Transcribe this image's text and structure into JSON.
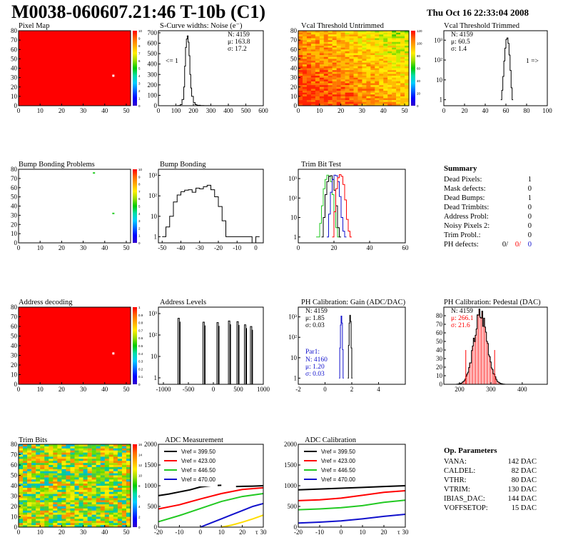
{
  "header": {
    "title": "M0038-060607.21:46 T-10b (C1)",
    "date": "Thu Oct 16 22:33:04 2008"
  },
  "colors": {
    "black": "#000000",
    "red": "#ff0000",
    "green": "#22c922",
    "blue": "#1111cc",
    "yellow": "#ffdd00"
  },
  "chart_data": [
    {
      "id": "pixel-map",
      "type": "heatmap",
      "title": "Pixel Map",
      "xlim": [
        0,
        52
      ],
      "ylim": [
        0,
        80
      ],
      "xticks": [
        0,
        10,
        20,
        30,
        40,
        50
      ],
      "yticks": [
        0,
        10,
        20,
        30,
        40,
        50,
        60,
        70,
        80
      ],
      "zscale_ticks": [
        "0",
        "1",
        "2",
        "3",
        "4",
        "5",
        "6",
        "7",
        "8",
        "9",
        "10"
      ],
      "fill": "uniform red (10)",
      "dead_pixel": {
        "x": 44,
        "y": 32
      }
    },
    {
      "id": "scurve",
      "type": "histogram",
      "title": "S-Curve widths: Noise (e⁻)",
      "xticks": [
        "0",
        "100",
        "200",
        "300",
        "400",
        "500",
        "600"
      ],
      "yticks": [
        "0",
        "100",
        "200",
        "300",
        "400",
        "500",
        "600",
        "700"
      ],
      "xlim": [
        0,
        600
      ],
      "ylim": [
        0,
        720
      ],
      "stats": [
        "N: 4159",
        "μ: 163.8",
        "σ: 17.2"
      ],
      "annotation": "<= 1",
      "x": [
        90,
        110,
        125,
        135,
        145,
        150,
        155,
        160,
        165,
        170,
        175,
        180,
        185,
        190,
        200,
        210,
        220,
        240,
        260,
        300
      ],
      "y": [
        0,
        2,
        10,
        60,
        180,
        380,
        560,
        640,
        670,
        610,
        480,
        300,
        170,
        90,
        30,
        10,
        4,
        2,
        1,
        0
      ]
    },
    {
      "id": "vcal-untrimmed",
      "type": "heatmap",
      "title": "Vcal Threshold Untrimmed",
      "xlim": [
        0,
        52
      ],
      "ylim": [
        0,
        80
      ],
      "xticks": [
        0,
        10,
        20,
        30,
        40,
        50
      ],
      "yticks": [
        0,
        10,
        20,
        30,
        40,
        50,
        60,
        70,
        80
      ],
      "zscale_ticks": [
        "0",
        "20",
        "40",
        "60",
        "80",
        "100",
        "120"
      ],
      "fill": "gradient: high (orange) upper-left to lower (yellow/green) lower-right"
    },
    {
      "id": "vcal-trimmed",
      "type": "histogram",
      "title": "Vcal Threshold Trimmed",
      "yscale": "log",
      "xticks": [
        "0",
        "20",
        "40",
        "60",
        "80",
        "100"
      ],
      "yticks": [
        "1",
        "10",
        "10²",
        "10³"
      ],
      "xlim": [
        0,
        100
      ],
      "ylim": [
        0.5,
        3000
      ],
      "stats": [
        "N: 4159",
        "μ: 60.5",
        "σ: 1.4"
      ],
      "annotation": "1 =>",
      "x": [
        55,
        56,
        57,
        58,
        59,
        60,
        61,
        62,
        63,
        64,
        65,
        66
      ],
      "y": [
        1,
        3,
        15,
        90,
        400,
        1100,
        1300,
        700,
        180,
        30,
        4,
        1
      ]
    },
    {
      "id": "bump-problems",
      "type": "heatmap",
      "title": "Bump Bonding Problems",
      "xlim": [
        0,
        52
      ],
      "ylim": [
        0,
        80
      ],
      "xticks": [
        0,
        10,
        20,
        30,
        40,
        50
      ],
      "yticks": [
        0,
        10,
        20,
        30,
        40,
        50,
        60,
        70,
        80
      ],
      "zscale_ticks": [
        "0",
        "1",
        "2",
        "3",
        "4",
        "5",
        "6",
        "7",
        "8",
        "9",
        "10"
      ],
      "fill": "white",
      "marks": [
        {
          "x": 35,
          "y": 76
        },
        {
          "x": 44,
          "y": 32
        }
      ]
    },
    {
      "id": "bump-bonding",
      "type": "histogram",
      "title": "Bump Bonding",
      "yscale": "log",
      "xticks": [
        "-50",
        "-40",
        "-30",
        "-20",
        "-10",
        "0"
      ],
      "yticks": [
        "1",
        "10",
        "10²",
        "10³"
      ],
      "xlim": [
        -52,
        4
      ],
      "ylim": [
        0.5,
        2000
      ],
      "x": [
        -50,
        -48,
        -46,
        -44,
        -42,
        -40,
        -38,
        -36,
        -34,
        -32,
        -30,
        -28,
        -26,
        -24,
        -22,
        -20,
        -18,
        -16,
        -2,
        0
      ],
      "y": [
        1,
        3,
        10,
        50,
        110,
        160,
        190,
        200,
        150,
        240,
        220,
        280,
        330,
        200,
        90,
        30,
        6,
        1,
        0,
        1
      ]
    },
    {
      "id": "trim-bit-test",
      "type": "histogram",
      "title": "Trim Bit Test",
      "yscale": "log",
      "xticks": [
        "0",
        "20",
        "40",
        "60"
      ],
      "yticks": [
        "1",
        "10",
        "10²",
        "10³"
      ],
      "xlim": [
        0,
        60
      ],
      "ylim": [
        0.5,
        3000
      ],
      "series": [
        {
          "color": "green",
          "x": [
            10,
            12,
            13,
            14,
            15,
            16,
            17,
            18,
            19,
            20,
            21,
            22
          ],
          "y": [
            1,
            5,
            40,
            300,
            900,
            1500,
            1300,
            700,
            150,
            20,
            3,
            1
          ]
        },
        {
          "color": "black",
          "x": [
            13,
            14,
            15,
            16,
            17,
            18,
            19,
            20,
            21,
            22,
            23
          ],
          "y": [
            1,
            10,
            150,
            700,
            1300,
            1400,
            900,
            250,
            40,
            3,
            1
          ]
        },
        {
          "color": "blue",
          "x": [
            16,
            17,
            18,
            19,
            20,
            21,
            22,
            23,
            24,
            25,
            26
          ],
          "y": [
            1,
            15,
            200,
            900,
            1500,
            1400,
            700,
            120,
            10,
            2,
            1
          ]
        },
        {
          "color": "red",
          "x": [
            19,
            20,
            21,
            22,
            23,
            24,
            25,
            26,
            27,
            28,
            29
          ],
          "y": [
            1,
            20,
            300,
            1100,
            1600,
            1300,
            500,
            80,
            8,
            2,
            1
          ]
        }
      ]
    },
    {
      "id": "address-decoding",
      "type": "heatmap",
      "title": "Address decoding",
      "xlim": [
        0,
        52
      ],
      "ylim": [
        0,
        80
      ],
      "xticks": [
        0,
        10,
        20,
        30,
        40,
        50
      ],
      "yticks": [
        0,
        10,
        20,
        30,
        40,
        50,
        60,
        70,
        80
      ],
      "zscale_ticks": [
        "0",
        "0.1",
        "0.2",
        "0.3",
        "0.4",
        "0.5",
        "0.6",
        "0.7",
        "0.8",
        "0.9",
        "1"
      ],
      "fill": "uniform red (1)",
      "dead_pixel": {
        "x": 44,
        "y": 32
      }
    },
    {
      "id": "address-levels",
      "type": "histogram",
      "title": "Address Levels",
      "yscale": "log",
      "xticks": [
        "-1000",
        "-500",
        "0",
        "500",
        "1000"
      ],
      "yticks": [
        "1",
        "10",
        "10²",
        "10³"
      ],
      "xlim": [
        -1100,
        1000
      ],
      "ylim": [
        0.5,
        2000
      ],
      "peaks": [
        {
          "x": -680,
          "h": 600
        },
        {
          "x": -180,
          "h": 400
        },
        {
          "x": 100,
          "h": 380
        },
        {
          "x": 330,
          "h": 450
        },
        {
          "x": 500,
          "h": 420
        },
        {
          "x": 650,
          "h": 300
        },
        {
          "x": 770,
          "h": 250
        }
      ]
    },
    {
      "id": "ph-gain",
      "type": "histogram",
      "title": "PH Calibration: Gain (ADC/DAC)",
      "yscale": "log",
      "xticks": [
        "-2",
        "0",
        "2",
        "4"
      ],
      "yticks": [
        "1",
        "10",
        "10²",
        "10³"
      ],
      "xlim": [
        -2,
        6
      ],
      "ylim": [
        0.5,
        3000
      ],
      "stats": [
        "N: 4159",
        "μ: 1.85",
        "σ: 0.03"
      ],
      "stats2_label": "Par1:",
      "stats2": [
        "N: 4160",
        "μ: 1.20",
        "σ: 0.03"
      ],
      "series": [
        {
          "color": "black",
          "x": [
            1.7,
            1.75,
            1.8,
            1.85,
            1.9,
            1.95,
            2.0
          ],
          "y": [
            1,
            40,
            500,
            1200,
            600,
            30,
            1
          ]
        },
        {
          "color": "blue",
          "x": [
            1.05,
            1.1,
            1.15,
            1.2,
            1.25,
            1.3,
            1.35
          ],
          "y": [
            1,
            30,
            400,
            1100,
            500,
            25,
            1
          ]
        }
      ]
    },
    {
      "id": "ph-pedestal",
      "type": "histogram",
      "title": "PH Calibration: Pedestal (DAC)",
      "xticks": [
        "200",
        "300",
        "400"
      ],
      "yticks": [
        "0",
        "10",
        "20",
        "30",
        "40",
        "50",
        "60",
        "70",
        "80"
      ],
      "xlim": [
        150,
        480
      ],
      "ylim": [
        0,
        90
      ],
      "stats": [
        "N: 4159",
        "μ: 266.1",
        "σ: 21.6"
      ],
      "cut_lines": [
        220,
        312
      ],
      "gauss": {
        "mean": 266.1,
        "sigma": 21.6,
        "peak": 82,
        "xmin": 190,
        "xmax": 345
      }
    },
    {
      "id": "trim-bits",
      "type": "heatmap",
      "title": "Trim Bits",
      "xlim": [
        0,
        52
      ],
      "ylim": [
        0,
        80
      ],
      "xticks": [
        0,
        10,
        20,
        30,
        40,
        50
      ],
      "yticks": [
        0,
        10,
        20,
        30,
        40,
        50,
        60,
        70,
        80
      ],
      "zscale_ticks": [
        "0",
        "2",
        "4",
        "6",
        "8",
        "10",
        "12",
        "14",
        "16"
      ],
      "fill": "mixed yellow/green noise"
    },
    {
      "id": "adc-measurement",
      "type": "line",
      "title": "ADC Measurement",
      "xticks": [
        "-20",
        "-10",
        "0",
        "10",
        "20",
        "30"
      ],
      "yticks": [
        "0",
        "500",
        "1000",
        "1500",
        "2000"
      ],
      "xlim": [
        -20,
        30
      ],
      "ylim": [
        0,
        2000
      ],
      "corner_label": "τ",
      "series": [
        {
          "name": "Vref = 399.50",
          "color": "black",
          "x": [
            -20,
            -15,
            -10,
            -5,
            0,
            5,
            10
          ],
          "y": [
            760,
            800,
            850,
            900,
            970,
            1000,
            1010
          ]
        },
        {
          "name": "Vref = 399.50",
          "color": "black",
          "x": [
            17,
            20,
            25,
            30
          ],
          "y": [
            980,
            985,
            990,
            1000
          ]
        },
        {
          "name": "Vref = 423.00",
          "color": "red",
          "x": [
            -20,
            -10,
            0,
            10,
            20,
            30
          ],
          "y": [
            440,
            540,
            680,
            810,
            910,
            950
          ]
        },
        {
          "name": "Vref = 446.50",
          "color": "green",
          "x": [
            -20,
            -10,
            0,
            10,
            20,
            30
          ],
          "y": [
            130,
            280,
            450,
            620,
            740,
            810
          ]
        },
        {
          "name": "Vref = 470.00",
          "color": "blue",
          "x": [
            0,
            5,
            10,
            15,
            20,
            25,
            30
          ],
          "y": [
            0,
            100,
            200,
            300,
            400,
            500,
            570
          ]
        },
        {
          "name": "",
          "color": "yellow",
          "x": [
            10,
            15,
            20,
            25,
            30
          ],
          "y": [
            0,
            50,
            120,
            200,
            290
          ]
        }
      ],
      "legend": [
        {
          "name": "Vref = 399.50",
          "color": "black"
        },
        {
          "name": "Vref = 423.00",
          "color": "red"
        },
        {
          "name": "Vref = 446.50",
          "color": "green"
        },
        {
          "name": "Vref = 470.00",
          "color": "blue"
        }
      ]
    },
    {
      "id": "adc-calibration",
      "type": "line",
      "title": "ADC Calibration",
      "xticks": [
        "-20",
        "-10",
        "0",
        "10",
        "20",
        "30"
      ],
      "yticks": [
        "0",
        "500",
        "1000",
        "1500",
        "2000"
      ],
      "xlim": [
        -20,
        30
      ],
      "ylim": [
        0,
        2000
      ],
      "corner_label": "τ",
      "series": [
        {
          "name": "Vref = 399.50",
          "color": "black",
          "x": [
            -20,
            -10,
            0,
            10,
            20,
            30
          ],
          "y": [
            900,
            920,
            940,
            960,
            980,
            1000
          ]
        },
        {
          "name": "Vref = 423.00",
          "color": "red",
          "x": [
            -20,
            -10,
            0,
            10,
            20,
            30
          ],
          "y": [
            640,
            660,
            700,
            770,
            840,
            880
          ]
        },
        {
          "name": "Vref = 446.50",
          "color": "green",
          "x": [
            -20,
            -10,
            0,
            10,
            20,
            30
          ],
          "y": [
            420,
            440,
            470,
            520,
            600,
            650
          ]
        },
        {
          "name": "Vref = 470.00",
          "color": "blue",
          "x": [
            -20,
            -10,
            0,
            10,
            20,
            30
          ],
          "y": [
            100,
            120,
            150,
            200,
            260,
            310
          ]
        }
      ],
      "legend": [
        {
          "name": "Vref = 399.50",
          "color": "black"
        },
        {
          "name": "Vref = 423.00",
          "color": "red"
        },
        {
          "name": "Vref = 446.50",
          "color": "green"
        },
        {
          "name": "Vref = 470.00",
          "color": "blue"
        }
      ]
    }
  ],
  "summary": {
    "title": "Summary",
    "rows": [
      {
        "label": "Dead Pixels:",
        "value": "1"
      },
      {
        "label": "Mask defects:",
        "value": "0"
      },
      {
        "label": "Dead Bumps:",
        "value": "1"
      },
      {
        "label": "Dead Trimbits:",
        "value": "0"
      },
      {
        "label": "Address Probl:",
        "value": "0"
      },
      {
        "label": "Noisy Pixels 2:",
        "value": "0"
      },
      {
        "label": "Trim Probl.:",
        "value": "0"
      }
    ],
    "ph_label": "PH defects:",
    "ph_values": [
      {
        "text": "0/",
        "color": "black"
      },
      {
        "text": "0/",
        "color": "red"
      },
      {
        "text": "0",
        "color": "blue"
      }
    ]
  },
  "op_params": {
    "title": "Op. Parameters",
    "rows": [
      {
        "label": "VANA:",
        "value": "142 DAC"
      },
      {
        "label": "CALDEL:",
        "value": "82 DAC"
      },
      {
        "label": "VTHR:",
        "value": "80 DAC"
      },
      {
        "label": "VTRIM:",
        "value": "130 DAC"
      },
      {
        "label": "IBIAS_DAC:",
        "value": "144 DAC"
      },
      {
        "label": "VOFFSETOP:",
        "value": "15 DAC"
      }
    ]
  }
}
